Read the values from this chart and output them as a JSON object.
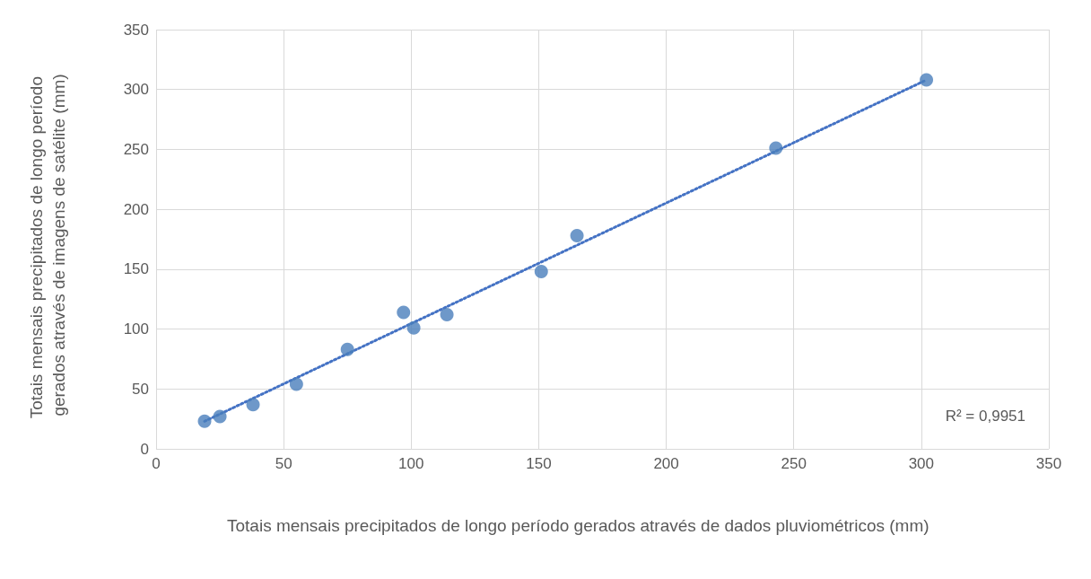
{
  "chart_data": {
    "type": "scatter",
    "xlabel": "Totais mensais precipitados de longo período gerados através de dados pluviométricos (mm)",
    "ylabel": "Totais mensais precipitados de longo período gerados através de imagens de satélite (mm)",
    "xlim": [
      0,
      350
    ],
    "xticks": [
      0,
      50,
      100,
      150,
      200,
      250,
      300,
      350
    ],
    "ylim": [
      0,
      350
    ],
    "yticks": [
      0,
      50,
      100,
      150,
      200,
      250,
      300,
      350
    ],
    "grid": true,
    "marker": "circle",
    "series": [
      {
        "color": "#4a7ebb",
        "x": [
          19,
          25,
          38,
          55,
          75,
          97,
          101,
          114,
          151,
          165,
          243,
          302
        ],
        "values": [
          23,
          27,
          37,
          54,
          83,
          114,
          101,
          112,
          148,
          178,
          251,
          308
        ]
      },
      {
        "type": "line",
        "color": "#4472c4",
        "line_style": "dotted",
        "marker": "none",
        "x": [
          19,
          302
        ],
        "values": [
          23,
          308
        ]
      }
    ],
    "annotations": [
      "R² = 0,9951"
    ]
  }
}
